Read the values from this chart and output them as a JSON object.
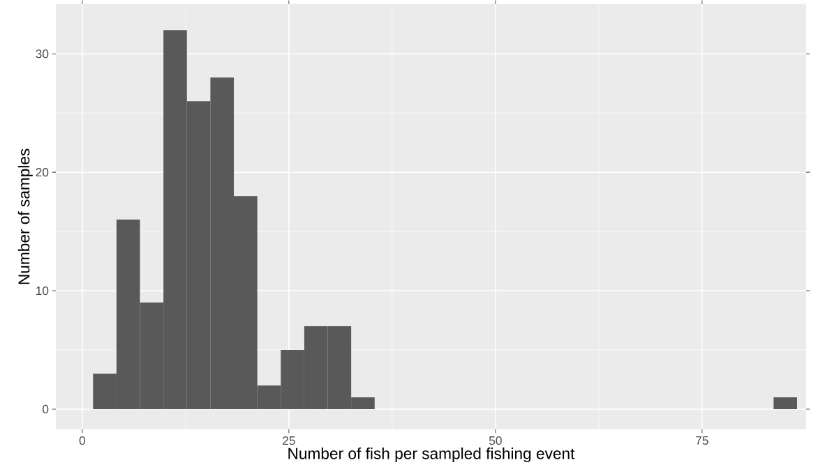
{
  "chart_data": {
    "type": "histogram",
    "xlabel": "Number of fish per sampled fishing event",
    "ylabel": "Number of samples",
    "bins": [
      1.3,
      4.14,
      6.98,
      9.82,
      12.66,
      15.5,
      18.34,
      21.18,
      24.02,
      26.86,
      29.7,
      32.54,
      35.38,
      38.22,
      41.06,
      43.9,
      46.74,
      49.58,
      52.42,
      55.26,
      58.1,
      60.94,
      63.78,
      66.62,
      69.46,
      72.3,
      75.14,
      77.98,
      80.82,
      83.66,
      86.5
    ],
    "values": [
      3,
      16,
      9,
      32,
      26,
      28,
      18,
      2,
      5,
      7,
      7,
      1,
      0,
      0,
      0,
      0,
      0,
      0,
      0,
      0,
      0,
      0,
      0,
      0,
      0,
      0,
      0,
      0,
      0,
      1
    ],
    "color": "#595959",
    "xlim": [
      -3.2,
      87.6
    ],
    "ylim": [
      -1.7,
      34.2
    ],
    "xticks": [
      0,
      25,
      50,
      75
    ],
    "yticks": [
      0,
      10,
      20,
      30
    ],
    "grid": true
  }
}
